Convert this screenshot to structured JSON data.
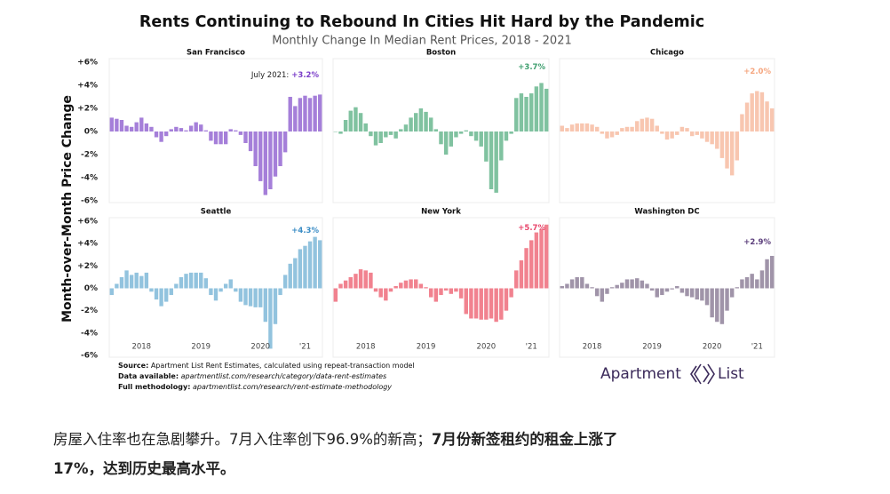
{
  "chart_data": {
    "type": "bar",
    "title": "Rents Continuing to Rebound In Cities Hit Hard by the Pandemic",
    "subtitle": "Monthly Change In Median Rent Prices, 2018 - 2021",
    "y_label": "Month-over-Month Price Change",
    "ylim": [
      -6,
      6
    ],
    "yticks": [
      {
        "value": 6,
        "label": "+6%"
      },
      {
        "value": 4,
        "label": "+4%"
      },
      {
        "value": 2,
        "label": "+2%"
      },
      {
        "value": 0,
        "label": "0%"
      },
      {
        "value": -2,
        "label": "-2%"
      },
      {
        "value": -4,
        "label": "-4%"
      },
      {
        "value": -6,
        "label": "-6%"
      }
    ],
    "categories": [
      null,
      null,
      null,
      null,
      null,
      null,
      "2018",
      null,
      null,
      null,
      null,
      null,
      null,
      null,
      null,
      null,
      null,
      null,
      "2019",
      null,
      null,
      null,
      null,
      null,
      null,
      null,
      null,
      null,
      null,
      null,
      "2020",
      null,
      null,
      null,
      null,
      null,
      null,
      null,
      null,
      "'21",
      null,
      null,
      null
    ],
    "panels": [
      {
        "name": "San Francisco",
        "color": "#a57fd9",
        "label_color": "#7b3ec9",
        "note": "July 2021:",
        "value_label": "+3.2%",
        "values": [
          1.2,
          1.1,
          1.0,
          0.5,
          0.4,
          0.8,
          1.2,
          0.7,
          0.4,
          -0.5,
          -0.9,
          -0.4,
          0.2,
          0.4,
          0.3,
          0.1,
          0.5,
          0.8,
          0.6,
          0.1,
          -0.8,
          -1.1,
          -1.1,
          -1.1,
          0.2,
          0.1,
          -0.3,
          -1.0,
          -1.7,
          -3.0,
          -4.3,
          -5.5,
          -5.0,
          -3.9,
          -3.0,
          -1.8,
          3.0,
          2.2,
          2.9,
          3.1,
          2.9,
          3.1,
          3.2
        ]
      },
      {
        "name": "Boston",
        "color": "#80c2a0",
        "label_color": "#3f9f6f",
        "value_label": "+3.7%",
        "values": [
          0,
          -0.2,
          1.0,
          1.8,
          2.1,
          1.6,
          0.7,
          -0.4,
          -1.2,
          -1.0,
          -0.5,
          -0.3,
          -0.6,
          0.2,
          0.6,
          1.2,
          1.6,
          2.0,
          1.7,
          1.2,
          0.2,
          -1.1,
          -2.0,
          -1.3,
          -0.5,
          -0.2,
          0.1,
          -0.4,
          -0.8,
          -1.3,
          -2.6,
          -5.0,
          -5.3,
          -2.5,
          -0.8,
          -0.2,
          2.9,
          3.3,
          3.0,
          3.3,
          3.9,
          4.2,
          3.7
        ]
      },
      {
        "name": "Chicago",
        "color": "#f8c6b0",
        "label_color": "#f5a67f",
        "value_label": "+2.0%",
        "values": [
          0.5,
          0.3,
          0.6,
          0.7,
          0.7,
          0.7,
          0.6,
          0.4,
          -0.2,
          -0.6,
          -0.5,
          -0.3,
          0.3,
          0.4,
          0.4,
          0.9,
          1.1,
          1.2,
          1.1,
          0.5,
          -0.2,
          -0.7,
          -0.6,
          -0.3,
          0.4,
          0.3,
          -0.4,
          -0.3,
          -0.6,
          -0.9,
          -1.1,
          -1.5,
          -2.3,
          -3.2,
          -3.8,
          -2.5,
          1.5,
          2.5,
          3.3,
          3.5,
          3.4,
          2.6,
          2.0
        ]
      },
      {
        "name": "Seattle",
        "color": "#92c3de",
        "label_color": "#3a8cc5",
        "value_label": "+4.3%",
        "values": [
          -0.6,
          0.4,
          1.0,
          1.6,
          1.2,
          1.4,
          1.1,
          1.4,
          -0.3,
          -1.0,
          -1.6,
          -1.2,
          -0.6,
          0.4,
          1.0,
          1.3,
          1.4,
          1.4,
          1.4,
          0.9,
          -0.6,
          -1.1,
          -0.3,
          0.4,
          0.8,
          -0.3,
          -1.2,
          -1.5,
          -1.6,
          -1.7,
          -1.7,
          -3.0,
          -5.4,
          -3.2,
          -0.6,
          1.2,
          2.2,
          2.7,
          3.5,
          3.8,
          4.2,
          4.6,
          4.3
        ]
      },
      {
        "name": "New York",
        "color": "#f1828f",
        "label_color": "#e8466b",
        "value_label": "+5.7%",
        "values": [
          -1.2,
          0.4,
          0.7,
          1.0,
          1.3,
          1.7,
          1.6,
          1.4,
          -0.3,
          -0.8,
          -1.1,
          -0.3,
          0.2,
          0.5,
          0.7,
          0.8,
          0.8,
          0.4,
          0.1,
          -0.8,
          -1.2,
          -0.6,
          -0.2,
          -0.5,
          -0.3,
          -0.9,
          -2.3,
          -2.7,
          -2.7,
          -2.8,
          -2.8,
          -2.7,
          -3.0,
          -2.8,
          -2.0,
          -0.8,
          1.6,
          2.5,
          3.6,
          4.3,
          5.0,
          5.3,
          5.7
        ]
      },
      {
        "name": "Washington DC",
        "color": "#a094a9",
        "label_color": "#5b3e7b",
        "value_label": "+2.9%",
        "values": [
          0.2,
          0.4,
          0.8,
          1.0,
          1.0,
          0.4,
          0.1,
          -0.7,
          -1.2,
          -0.5,
          0.1,
          0.3,
          0.5,
          0.8,
          0.8,
          0.9,
          0.7,
          0.4,
          -0.2,
          -0.8,
          -0.6,
          -0.3,
          -0.1,
          0.2,
          -0.4,
          -0.7,
          -0.8,
          -1.0,
          -1.1,
          -1.5,
          -2.6,
          -3.0,
          -3.2,
          -2.0,
          -0.8,
          0.1,
          0.8,
          1.0,
          1.3,
          0.8,
          1.6,
          2.6,
          2.9
        ]
      }
    ],
    "source": {
      "label": "Source:",
      "text": "Apartment List Rent Estimates, calculated using repeat-transaction model"
    },
    "data_available": {
      "label": "Data available:",
      "text": "apartmentlist.com/research/category/data-rent-estimates"
    },
    "methodology": {
      "label": "Full methodology:",
      "text": "apartmentlist.com/research/rent-estimate-methodology"
    },
    "logo": [
      "Apartment",
      "List"
    ]
  },
  "paragraph": {
    "text": "房屋入住率也在急剧攀升。7月入住率创下96.9%的新高；",
    "bold_line1": "7月份新签租约的租金上涨了",
    "bold_line2": "17%，达到历史最高水平。"
  }
}
